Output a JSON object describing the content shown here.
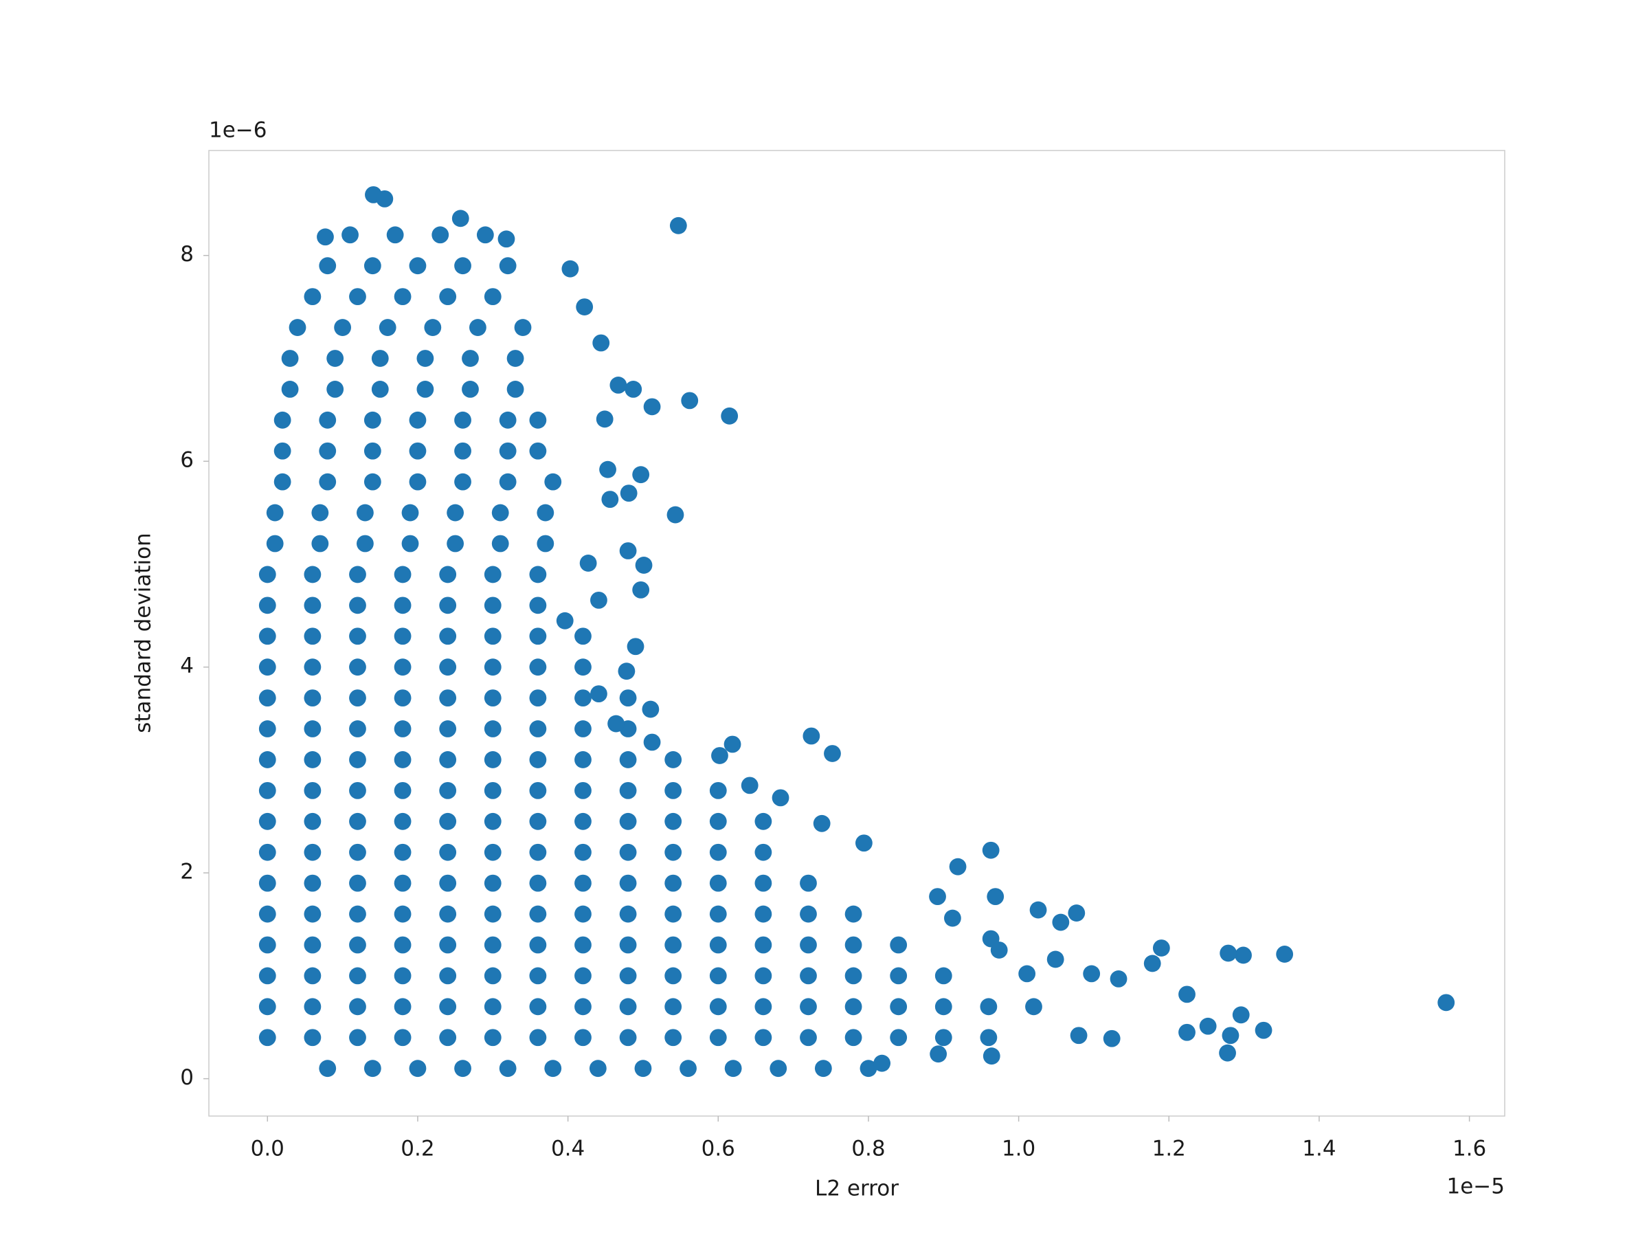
{
  "chart_data": {
    "type": "scatter",
    "xlabel": "L2 error",
    "ylabel": "standard deviation",
    "x_offset_label": "1e−5",
    "y_offset_label": "1e−6",
    "color": "#1f77b4",
    "xlim": [
      -0.078,
      1.647
    ],
    "ylim": [
      -0.363,
      9.02
    ],
    "xticks": [
      {
        "value": 0,
        "label": "0.0"
      },
      0.2,
      0.4,
      0.6,
      0.8,
      {
        "value": 1,
        "label": "1.0"
      },
      1.2,
      1.4,
      1.6
    ],
    "yticks": [
      0,
      2,
      4,
      6,
      8
    ],
    "x": [
      0.08,
      0.14,
      0.2,
      0.26,
      0.32,
      0.38,
      0.44,
      0.5,
      0.56,
      0.62,
      0.68,
      0.74,
      0.8,
      0,
      0.06,
      0.12,
      0.18,
      0.24,
      0.3,
      0.36,
      0.42,
      0.48,
      0.54,
      0.6,
      0.66,
      0.72,
      0.78,
      0.84,
      0.9,
      0.96,
      0,
      0.06,
      0.12,
      0.18,
      0.24,
      0.3,
      0.36,
      0.42,
      0.48,
      0.54,
      0.6,
      0.66,
      0.72,
      0.78,
      0.84,
      0.9,
      0.96,
      1.02,
      0,
      0.06,
      0.12,
      0.18,
      0.24,
      0.3,
      0.36,
      0.42,
      0.48,
      0.54,
      0.6,
      0.66,
      0.72,
      0.78,
      0.84,
      0.9,
      0,
      0.06,
      0.12,
      0.18,
      0.24,
      0.3,
      0.36,
      0.42,
      0.48,
      0.54,
      0.6,
      0.66,
      0.72,
      0.78,
      0.84,
      0,
      0.06,
      0.12,
      0.18,
      0.24,
      0.3,
      0.36,
      0.42,
      0.48,
      0.54,
      0.6,
      0.66,
      0.72,
      0.78,
      0,
      0.06,
      0.12,
      0.18,
      0.24,
      0.3,
      0.36,
      0.42,
      0.48,
      0.54,
      0.6,
      0.66,
      0.72,
      0,
      0.06,
      0.12,
      0.18,
      0.24,
      0.3,
      0.36,
      0.42,
      0.48,
      0.54,
      0.6,
      0.66,
      0,
      0.06,
      0.12,
      0.18,
      0.24,
      0.3,
      0.36,
      0.42,
      0.48,
      0.54,
      0.6,
      0.66,
      0,
      0.06,
      0.12,
      0.18,
      0.24,
      0.3,
      0.36,
      0.42,
      0.48,
      0.54,
      0.6,
      0,
      0.06,
      0.12,
      0.18,
      0.24,
      0.3,
      0.36,
      0.42,
      0.48,
      0.54,
      0,
      0.06,
      0.12,
      0.18,
      0.24,
      0.3,
      0.36,
      0.42,
      0.48,
      0,
      0.06,
      0.12,
      0.18,
      0.24,
      0.3,
      0.36,
      0.42,
      0.48,
      0,
      0.06,
      0.12,
      0.18,
      0.24,
      0.3,
      0.36,
      0.42,
      0,
      0.06,
      0.12,
      0.18,
      0.24,
      0.3,
      0.36,
      0.42,
      0,
      0.06,
      0.12,
      0.18,
      0.24,
      0.3,
      0.36,
      0,
      0.06,
      0.12,
      0.18,
      0.24,
      0.3,
      0.36,
      0.01,
      0.07,
      0.13,
      0.19,
      0.25,
      0.31,
      0.37,
      0.01,
      0.07,
      0.13,
      0.19,
      0.25,
      0.31,
      0.37,
      0.02,
      0.08,
      0.14,
      0.2,
      0.26,
      0.32,
      0.38,
      0.02,
      0.08,
      0.14,
      0.2,
      0.26,
      0.32,
      0.36,
      0.02,
      0.08,
      0.14,
      0.2,
      0.26,
      0.32,
      0.36,
      0.03,
      0.09,
      0.15,
      0.21,
      0.27,
      0.33,
      0.03,
      0.09,
      0.15,
      0.21,
      0.27,
      0.33,
      0.04,
      0.1,
      0.16,
      0.22,
      0.28,
      0.34,
      0.06,
      0.12,
      0.18,
      0.24,
      0.3,
      0.08,
      0.14,
      0.2,
      0.26,
      0.32,
      0.11,
      0.17,
      0.23,
      0.29,
      1.569,
      1.354,
      1.299,
      1.279,
      1.326,
      1.296,
      1.282,
      1.278,
      1.19,
      1.252,
      1.133,
      1.097,
      1.077,
      1.056,
      1.026,
      1.049,
      1.011,
      0.963,
      0.969,
      0.919,
      0.912,
      0.892,
      0.963,
      0.974,
      0.724,
      0.752,
      0.619,
      0.602,
      0.794,
      0.738,
      0.683,
      0.642,
      0.547,
      0.562,
      0.615,
      0.543,
      0.512,
      0.497,
      0.481,
      0.453,
      0.456,
      0.449,
      0.487,
      0.467,
      0.422,
      0.444,
      0.403,
      0.48,
      0.501,
      0.497,
      0.427,
      0.441,
      0.396,
      0.49,
      0.478,
      0.51,
      0.512,
      0.441,
      0.464,
      0.141,
      0.156,
      0.077,
      0.318,
      0.257,
      1.124,
      1.224,
      1.224,
      1.178,
      0.818,
      0.893,
      0.964,
      1.08
    ],
    "values": [
      0.1,
      0.1,
      0.1,
      0.1,
      0.1,
      0.1,
      0.1,
      0.1,
      0.1,
      0.1,
      0.1,
      0.1,
      0.1,
      0.4,
      0.4,
      0.4,
      0.4,
      0.4,
      0.4,
      0.4,
      0.4,
      0.4,
      0.4,
      0.4,
      0.4,
      0.4,
      0.4,
      0.4,
      0.4,
      0.4,
      0.7,
      0.7,
      0.7,
      0.7,
      0.7,
      0.7,
      0.7,
      0.7,
      0.7,
      0.7,
      0.7,
      0.7,
      0.7,
      0.7,
      0.7,
      0.7,
      0.7,
      0.7,
      1,
      1,
      1,
      1,
      1,
      1,
      1,
      1,
      1,
      1,
      1,
      1,
      1,
      1,
      1,
      1,
      1.3,
      1.3,
      1.3,
      1.3,
      1.3,
      1.3,
      1.3,
      1.3,
      1.3,
      1.3,
      1.3,
      1.3,
      1.3,
      1.3,
      1.3,
      1.6,
      1.6,
      1.6,
      1.6,
      1.6,
      1.6,
      1.6,
      1.6,
      1.6,
      1.6,
      1.6,
      1.6,
      1.6,
      1.6,
      1.9,
      1.9,
      1.9,
      1.9,
      1.9,
      1.9,
      1.9,
      1.9,
      1.9,
      1.9,
      1.9,
      1.9,
      1.9,
      2.2,
      2.2,
      2.2,
      2.2,
      2.2,
      2.2,
      2.2,
      2.2,
      2.2,
      2.2,
      2.2,
      2.2,
      2.5,
      2.5,
      2.5,
      2.5,
      2.5,
      2.5,
      2.5,
      2.5,
      2.5,
      2.5,
      2.5,
      2.5,
      2.8,
      2.8,
      2.8,
      2.8,
      2.8,
      2.8,
      2.8,
      2.8,
      2.8,
      2.8,
      2.8,
      3.1,
      3.1,
      3.1,
      3.1,
      3.1,
      3.1,
      3.1,
      3.1,
      3.1,
      3.1,
      3.4,
      3.4,
      3.4,
      3.4,
      3.4,
      3.4,
      3.4,
      3.4,
      3.4,
      3.7,
      3.7,
      3.7,
      3.7,
      3.7,
      3.7,
      3.7,
      3.7,
      3.7,
      4,
      4,
      4,
      4,
      4,
      4,
      4,
      4,
      4.3,
      4.3,
      4.3,
      4.3,
      4.3,
      4.3,
      4.3,
      4.3,
      4.6,
      4.6,
      4.6,
      4.6,
      4.6,
      4.6,
      4.6,
      4.9,
      4.9,
      4.9,
      4.9,
      4.9,
      4.9,
      4.9,
      5.2,
      5.2,
      5.2,
      5.2,
      5.2,
      5.2,
      5.2,
      5.5,
      5.5,
      5.5,
      5.5,
      5.5,
      5.5,
      5.5,
      5.8,
      5.8,
      5.8,
      5.8,
      5.8,
      5.8,
      5.8,
      6.1,
      6.1,
      6.1,
      6.1,
      6.1,
      6.1,
      6.1,
      6.4,
      6.4,
      6.4,
      6.4,
      6.4,
      6.4,
      6.4,
      6.7,
      6.7,
      6.7,
      6.7,
      6.7,
      6.7,
      7,
      7,
      7,
      7,
      7,
      7,
      7.3,
      7.3,
      7.3,
      7.3,
      7.3,
      7.3,
      7.6,
      7.6,
      7.6,
      7.6,
      7.6,
      7.9,
      7.9,
      7.9,
      7.9,
      7.9,
      8.2,
      8.2,
      8.2,
      8.2,
      0.74,
      1.21,
      1.2,
      1.22,
      0.47,
      0.62,
      0.42,
      0.25,
      1.27,
      0.51,
      0.97,
      1.02,
      1.61,
      1.52,
      1.64,
      1.16,
      1.02,
      2.22,
      1.77,
      2.06,
      1.56,
      1.77,
      1.36,
      1.25,
      3.33,
      3.16,
      3.25,
      3.14,
      2.29,
      2.48,
      2.73,
      2.85,
      8.29,
      6.59,
      6.44,
      5.48,
      6.53,
      5.87,
      5.69,
      5.92,
      5.63,
      6.41,
      6.7,
      6.74,
      7.5,
      7.15,
      7.87,
      5.13,
      4.99,
      4.75,
      5.01,
      4.65,
      4.45,
      4.2,
      3.96,
      3.59,
      3.27,
      3.74,
      3.45,
      8.59,
      8.55,
      8.18,
      8.16,
      8.36,
      0.39,
      0.45,
      0.82,
      1.12,
      0.15,
      0.24,
      0.22,
      0.42
    ]
  }
}
